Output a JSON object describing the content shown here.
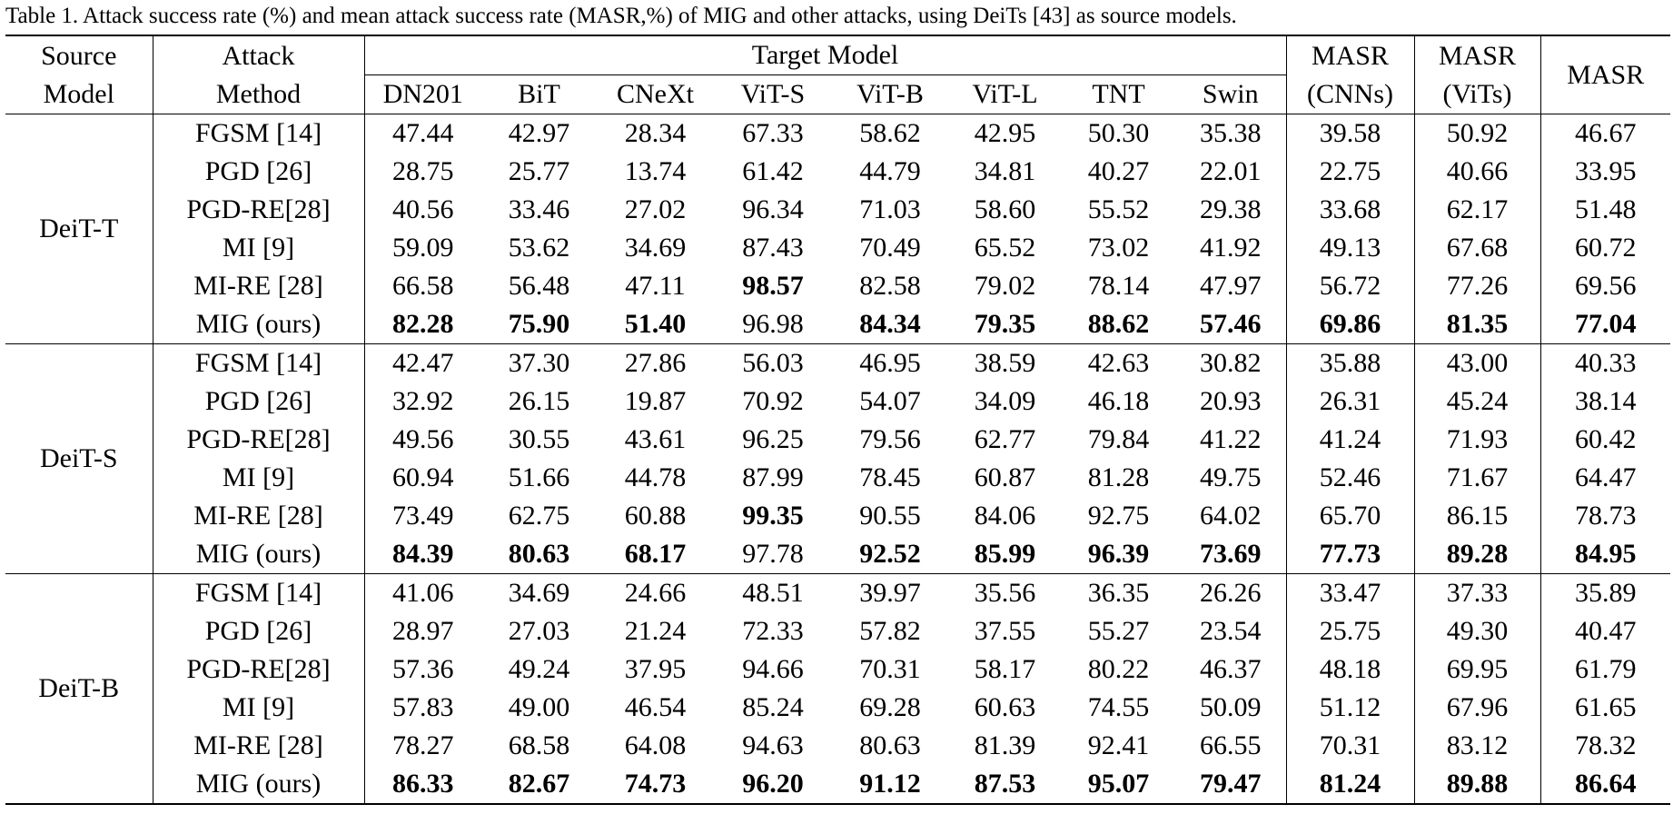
{
  "caption": "Table 1. Attack success rate (%) and mean attack success rate (MASR,%) of MIG and other attacks, using DeiTs [43] as source models.",
  "header": {
    "source_model": [
      "Source",
      "Model"
    ],
    "attack_method": [
      "Attack",
      "Method"
    ],
    "target_model": "Target Model",
    "targets": [
      "DN201",
      "BiT",
      "CNeXt",
      "ViT-S",
      "ViT-B",
      "ViT-L",
      "TNT",
      "Swin"
    ],
    "masr_cnns": [
      "MASR",
      "(CNNs)"
    ],
    "masr_vits": [
      "MASR",
      "(ViTs)"
    ],
    "masr": "MASR"
  },
  "groups": [
    {
      "source": "DeiT-T",
      "rows": [
        {
          "method": "FGSM [14]",
          "values": [
            "47.44",
            "42.97",
            "28.34",
            "67.33",
            "58.62",
            "42.95",
            "50.30",
            "35.38",
            "39.58",
            "50.92",
            "46.67"
          ],
          "bold": []
        },
        {
          "method": "PGD [26]",
          "values": [
            "28.75",
            "25.77",
            "13.74",
            "61.42",
            "44.79",
            "34.81",
            "40.27",
            "22.01",
            "22.75",
            "40.66",
            "33.95"
          ],
          "bold": []
        },
        {
          "method": "PGD-RE[28]",
          "values": [
            "40.56",
            "33.46",
            "27.02",
            "96.34",
            "71.03",
            "58.60",
            "55.52",
            "29.38",
            "33.68",
            "62.17",
            "51.48"
          ],
          "bold": []
        },
        {
          "method": "MI [9]",
          "values": [
            "59.09",
            "53.62",
            "34.69",
            "87.43",
            "70.49",
            "65.52",
            "73.02",
            "41.92",
            "49.13",
            "67.68",
            "60.72"
          ],
          "bold": []
        },
        {
          "method": "MI-RE [28]",
          "values": [
            "66.58",
            "56.48",
            "47.11",
            "98.57",
            "82.58",
            "79.02",
            "78.14",
            "47.97",
            "56.72",
            "77.26",
            "69.56"
          ],
          "bold": [
            3
          ]
        },
        {
          "method": "MIG (ours)",
          "values": [
            "82.28",
            "75.90",
            "51.40",
            "96.98",
            "84.34",
            "79.35",
            "88.62",
            "57.46",
            "69.86",
            "81.35",
            "77.04"
          ],
          "bold": [
            0,
            1,
            2,
            4,
            5,
            6,
            7,
            8,
            9,
            10
          ]
        }
      ]
    },
    {
      "source": "DeiT-S",
      "rows": [
        {
          "method": "FGSM [14]",
          "values": [
            "42.47",
            "37.30",
            "27.86",
            "56.03",
            "46.95",
            "38.59",
            "42.63",
            "30.82",
            "35.88",
            "43.00",
            "40.33"
          ],
          "bold": []
        },
        {
          "method": "PGD [26]",
          "values": [
            "32.92",
            "26.15",
            "19.87",
            "70.92",
            "54.07",
            "34.09",
            "46.18",
            "20.93",
            "26.31",
            "45.24",
            "38.14"
          ],
          "bold": []
        },
        {
          "method": "PGD-RE[28]",
          "values": [
            "49.56",
            "30.55",
            "43.61",
            "96.25",
            "79.56",
            "62.77",
            "79.84",
            "41.22",
            "41.24",
            "71.93",
            "60.42"
          ],
          "bold": []
        },
        {
          "method": "MI [9]",
          "values": [
            "60.94",
            "51.66",
            "44.78",
            "87.99",
            "78.45",
            "60.87",
            "81.28",
            "49.75",
            "52.46",
            "71.67",
            "64.47"
          ],
          "bold": []
        },
        {
          "method": "MI-RE [28]",
          "values": [
            "73.49",
            "62.75",
            "60.88",
            "99.35",
            "90.55",
            "84.06",
            "92.75",
            "64.02",
            "65.70",
            "86.15",
            "78.73"
          ],
          "bold": [
            3
          ]
        },
        {
          "method": "MIG (ours)",
          "values": [
            "84.39",
            "80.63",
            "68.17",
            "97.78",
            "92.52",
            "85.99",
            "96.39",
            "73.69",
            "77.73",
            "89.28",
            "84.95"
          ],
          "bold": [
            0,
            1,
            2,
            4,
            5,
            6,
            7,
            8,
            9,
            10
          ]
        }
      ]
    },
    {
      "source": "DeiT-B",
      "rows": [
        {
          "method": "FGSM [14]",
          "values": [
            "41.06",
            "34.69",
            "24.66",
            "48.51",
            "39.97",
            "35.56",
            "36.35",
            "26.26",
            "33.47",
            "37.33",
            "35.89"
          ],
          "bold": []
        },
        {
          "method": "PGD [26]",
          "values": [
            "28.97",
            "27.03",
            "21.24",
            "72.33",
            "57.82",
            "37.55",
            "55.27",
            "23.54",
            "25.75",
            "49.30",
            "40.47"
          ],
          "bold": []
        },
        {
          "method": "PGD-RE[28]",
          "values": [
            "57.36",
            "49.24",
            "37.95",
            "94.66",
            "70.31",
            "58.17",
            "80.22",
            "46.37",
            "48.18",
            "69.95",
            "61.79"
          ],
          "bold": []
        },
        {
          "method": "MI [9]",
          "values": [
            "57.83",
            "49.00",
            "46.54",
            "85.24",
            "69.28",
            "60.63",
            "74.55",
            "50.09",
            "51.12",
            "67.96",
            "61.65"
          ],
          "bold": []
        },
        {
          "method": "MI-RE [28]",
          "values": [
            "78.27",
            "68.58",
            "64.08",
            "94.63",
            "80.63",
            "81.39",
            "92.41",
            "66.55",
            "70.31",
            "83.12",
            "78.32"
          ],
          "bold": []
        },
        {
          "method": "MIG (ours)",
          "values": [
            "86.33",
            "82.67",
            "74.73",
            "96.20",
            "91.12",
            "87.53",
            "95.07",
            "79.47",
            "81.24",
            "89.88",
            "86.64"
          ],
          "bold": [
            0,
            1,
            2,
            3,
            4,
            5,
            6,
            7,
            8,
            9,
            10
          ]
        }
      ]
    }
  ]
}
